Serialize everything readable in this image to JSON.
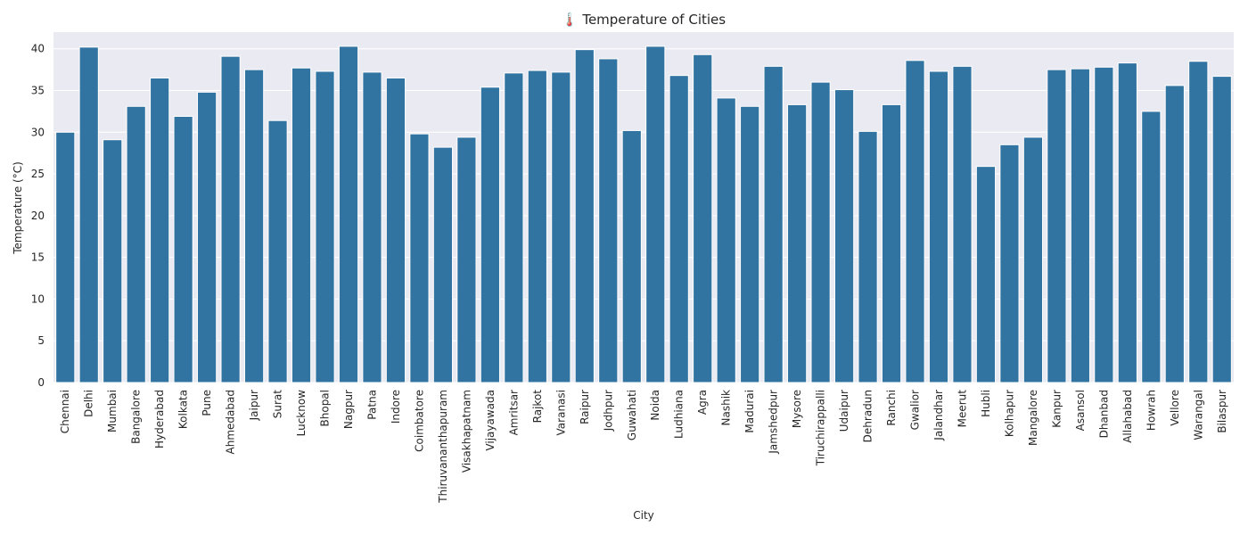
{
  "chart_data": {
    "type": "bar",
    "title": "🌡️ Temperature of Cities",
    "xlabel": "City",
    "ylabel": "Temperature (°C)",
    "ylim": [
      0,
      42
    ],
    "yticks": [
      0,
      5,
      10,
      15,
      20,
      25,
      30,
      35,
      40
    ],
    "grid": true,
    "bar_color": "#3274a1",
    "background_color": "#eaeaf2",
    "categories": [
      "Chennai",
      "Delhi",
      "Mumbai",
      "Bangalore",
      "Hyderabad",
      "Kolkata",
      "Pune",
      "Ahmedabad",
      "Jaipur",
      "Surat",
      "Lucknow",
      "Bhopal",
      "Nagpur",
      "Patna",
      "Indore",
      "Coimbatore",
      "Thiruvananthapuram",
      "Visakhapatnam",
      "Vijayawada",
      "Amritsar",
      "Rajkot",
      "Varanasi",
      "Raipur",
      "Jodhpur",
      "Guwahati",
      "Noida",
      "Ludhiana",
      "Agra",
      "Nashik",
      "Madurai",
      "Jamshedpur",
      "Mysore",
      "Tiruchirappalli",
      "Udaipur",
      "Dehradun",
      "Ranchi",
      "Gwalior",
      "Jalandhar",
      "Meerut",
      "Hubli",
      "Kolhapur",
      "Mangalore",
      "Kanpur",
      "Asansol",
      "Dhanbad",
      "Allahabad",
      "Howrah",
      "Vellore",
      "Warangal",
      "Bilaspur"
    ],
    "values": [
      30.0,
      40.2,
      29.1,
      33.1,
      36.5,
      31.9,
      34.8,
      39.1,
      37.5,
      31.4,
      37.7,
      37.3,
      40.3,
      37.2,
      36.5,
      29.8,
      28.2,
      29.4,
      35.4,
      37.1,
      37.4,
      37.2,
      39.9,
      38.8,
      30.2,
      40.3,
      36.8,
      39.3,
      34.1,
      33.1,
      37.9,
      33.3,
      36.0,
      35.1,
      30.1,
      33.3,
      38.6,
      37.3,
      37.9,
      25.9,
      28.5,
      29.4,
      37.5,
      37.6,
      37.8,
      38.3,
      32.5,
      35.6,
      38.5,
      36.7
    ]
  }
}
